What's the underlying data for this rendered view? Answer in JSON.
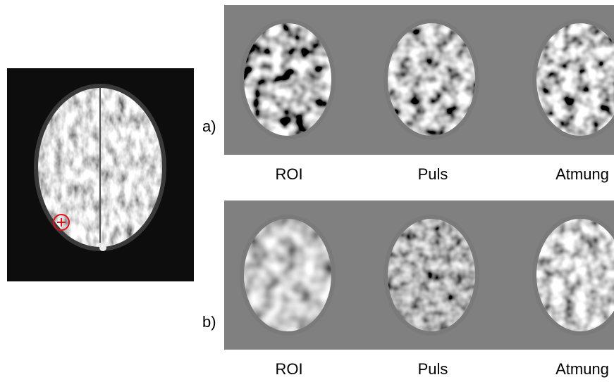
{
  "panels": [
    {
      "label": "a)",
      "captions": [
        "ROI",
        "Puls",
        "Atmung"
      ]
    },
    {
      "label": "b)",
      "captions": [
        "ROI",
        "Puls",
        "Atmung"
      ]
    }
  ]
}
